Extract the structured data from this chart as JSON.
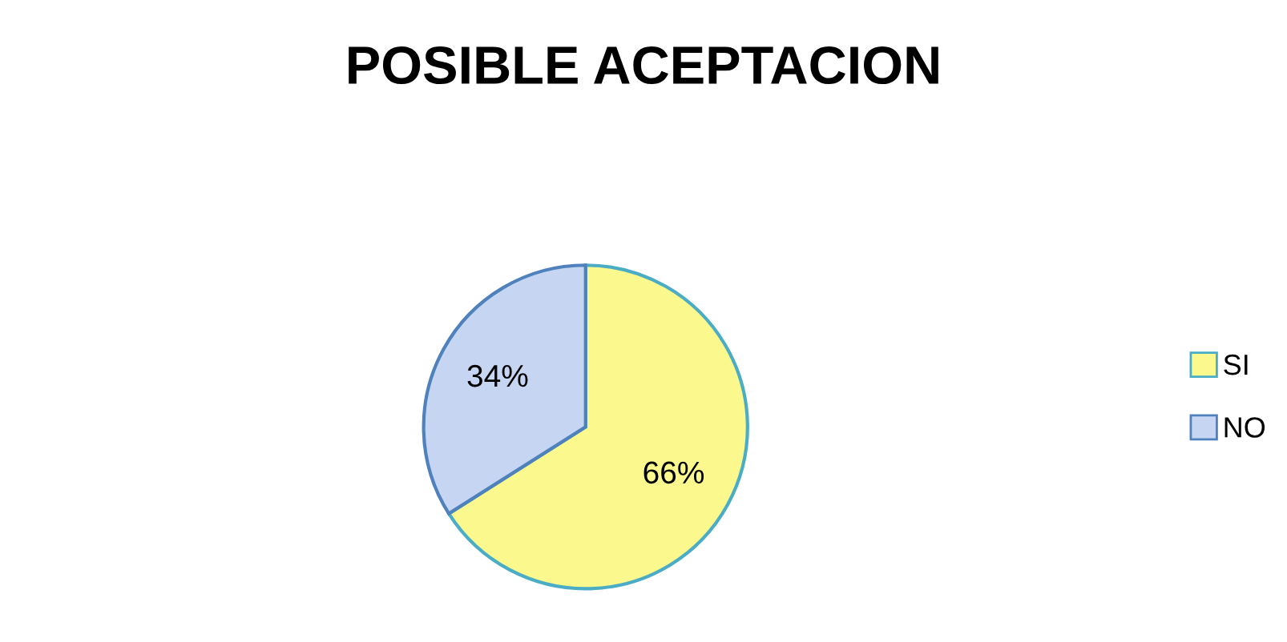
{
  "chart_data": {
    "type": "pie",
    "title": "POSIBLE ACEPTACION",
    "categories": [
      "SI",
      "NO"
    ],
    "values": [
      66,
      34
    ],
    "colors": [
      "#fbf98e",
      "#c6d6f2"
    ],
    "value_labels": [
      "66%",
      "34%"
    ],
    "legend": "right"
  }
}
